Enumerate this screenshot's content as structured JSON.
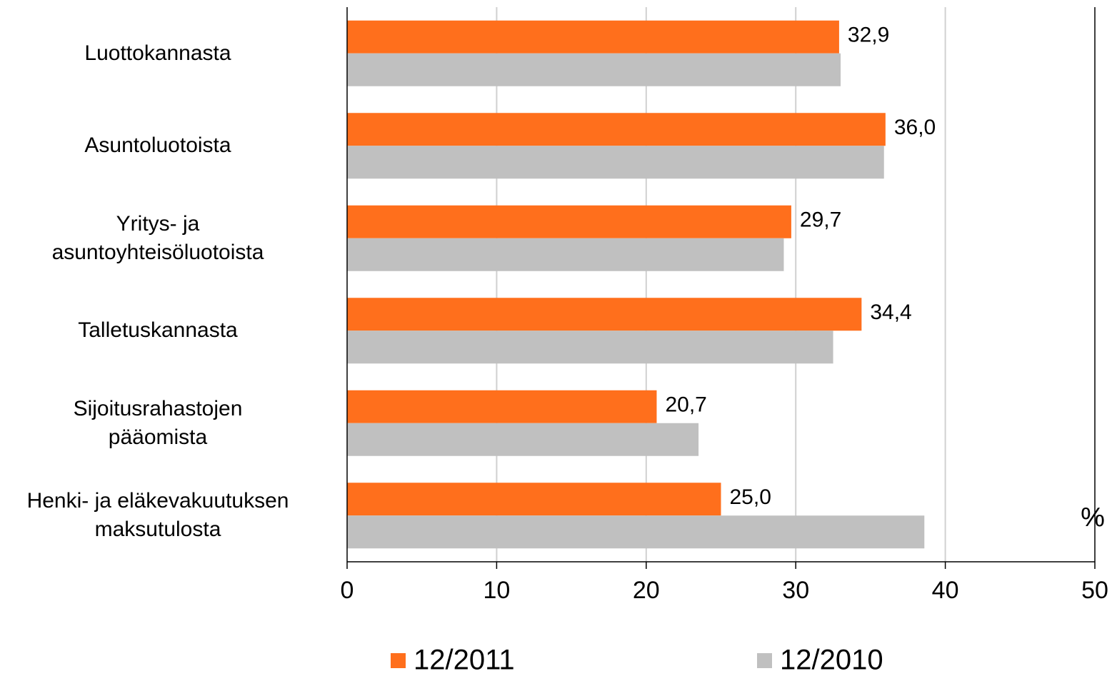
{
  "chart_data": {
    "type": "bar",
    "orientation": "horizontal",
    "categories": [
      "Luottokannasta",
      "Asuntoluotoista",
      "Yritys- ja\nasuntoyhteisöluotoista",
      "Talletuskannasta",
      "Sijoitusrahastojen\npääomista",
      "Henki- ja eläkevakuutuksen\nmaksutulosta"
    ],
    "series": [
      {
        "name": "12/2011",
        "color": "#ff6f1c",
        "values": [
          32.9,
          36.0,
          29.7,
          34.4,
          20.7,
          25.0
        ],
        "value_labels": [
          "32,9",
          "36,0",
          "29,7",
          "34,4",
          "20,7",
          "25,0"
        ]
      },
      {
        "name": "12/2010",
        "color": "#c0c0c0",
        "values": [
          33.0,
          35.9,
          29.2,
          32.5,
          23.5,
          38.6
        ]
      }
    ],
    "xlabel": "%",
    "xlim": [
      0,
      50
    ],
    "xticks": [
      0,
      10,
      20,
      30,
      40,
      50
    ],
    "grid": true,
    "legend": "bottom"
  }
}
